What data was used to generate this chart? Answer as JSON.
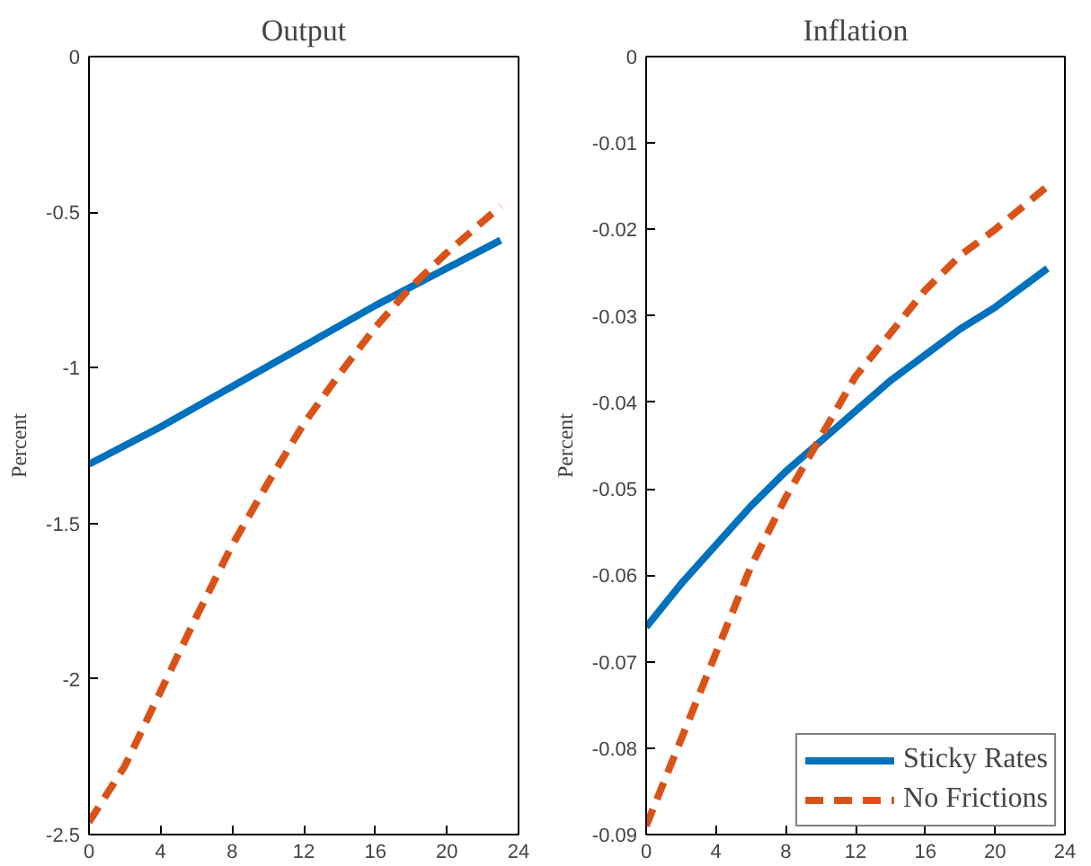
{
  "chart_data": [
    {
      "type": "line",
      "title": "Output",
      "ylabel": "Percent",
      "xlim": [
        0,
        24
      ],
      "xticks": [
        0,
        4,
        8,
        12,
        16,
        20,
        24
      ],
      "ylim": [
        -2.5,
        0
      ],
      "yticks": [
        -2.5,
        -2,
        -1.5,
        -1,
        -0.5,
        0
      ],
      "grid": false,
      "legend": false,
      "series": [
        {
          "color": "#0072bd",
          "line_style": "solid",
          "x": [
            0,
            4,
            8,
            12,
            16,
            20,
            23
          ],
          "values": [
            -1.31,
            -1.19,
            -1.06,
            -0.93,
            -0.8,
            -0.68,
            -0.59
          ]
        },
        {
          "color": "#d95319",
          "line_style": "dashed",
          "x": [
            0,
            2,
            4,
            6,
            8,
            10,
            12,
            14,
            16,
            18,
            20,
            23
          ],
          "values": [
            -2.46,
            -2.28,
            -2.04,
            -1.8,
            -1.57,
            -1.37,
            -1.18,
            -1.02,
            -0.87,
            -0.74,
            -0.63,
            -0.48
          ]
        }
      ]
    },
    {
      "type": "line",
      "title": "Inflation",
      "ylabel": "Percent",
      "xlim": [
        0,
        24
      ],
      "xticks": [
        0,
        4,
        8,
        12,
        16,
        20,
        24
      ],
      "ylim": [
        -0.09,
        0
      ],
      "yticks": [
        -0.09,
        -0.08,
        -0.07,
        -0.06,
        -0.05,
        -0.04,
        -0.03,
        -0.02,
        -0.01,
        0
      ],
      "grid": false,
      "legend": "bottom right",
      "series": [
        {
          "name": "Sticky Rates",
          "color": "#0072bd",
          "line_style": "solid",
          "x": [
            0,
            2,
            4,
            6,
            8,
            10,
            12,
            14,
            16,
            18,
            20,
            23
          ],
          "values": [
            -0.066,
            -0.061,
            -0.0565,
            -0.052,
            -0.048,
            -0.0445,
            -0.041,
            -0.0375,
            -0.0345,
            -0.0315,
            -0.029,
            -0.0245
          ]
        },
        {
          "name": "No Frictions",
          "color": "#d95319",
          "line_style": "dashed",
          "x": [
            0,
            2,
            4,
            6,
            8,
            10,
            12,
            14,
            16,
            18,
            20,
            23
          ],
          "values": [
            -0.089,
            -0.079,
            -0.069,
            -0.059,
            -0.051,
            -0.044,
            -0.037,
            -0.032,
            -0.027,
            -0.023,
            -0.02,
            -0.015
          ]
        }
      ]
    }
  ]
}
